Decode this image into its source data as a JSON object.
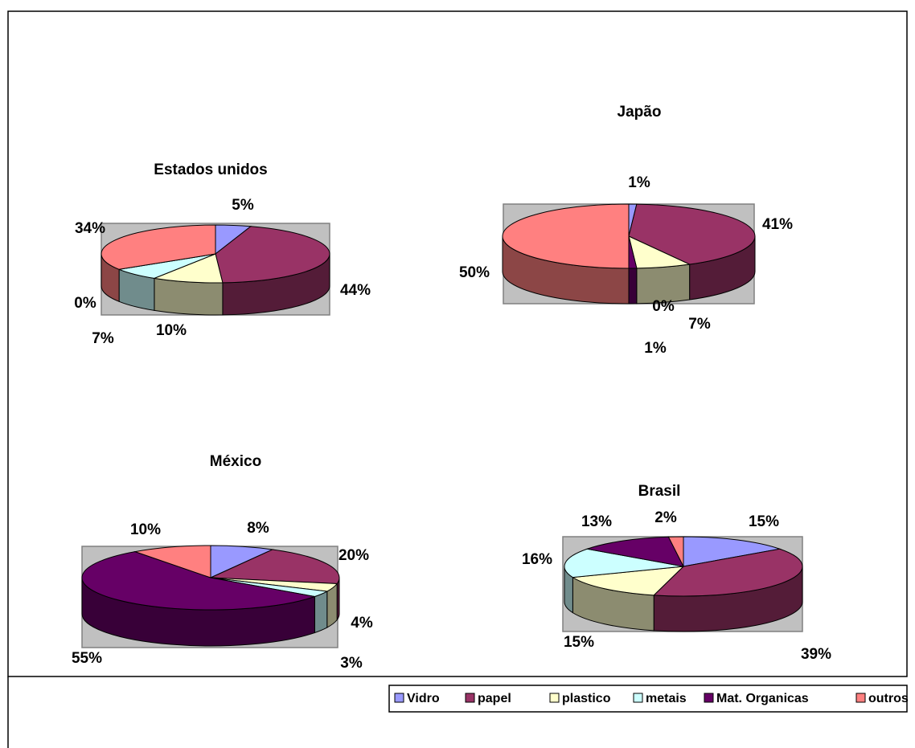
{
  "legend": {
    "categories": [
      "Vidro",
      "papel",
      "plastico",
      "metais",
      "Mat. Organicas",
      "outros"
    ],
    "colors": [
      "#9999ff",
      "#993366",
      "#ffffcc",
      "#ccffff",
      "#660066",
      "#ff8080"
    ]
  },
  "chart_data": [
    {
      "type": "pie",
      "title": "Estados unidos",
      "values": [
        5,
        44,
        10,
        7,
        0,
        34
      ],
      "value_labels": [
        "5%",
        "44%",
        "10%",
        "7%",
        "0%",
        "34%"
      ]
    },
    {
      "type": "pie",
      "title": "Japão",
      "values": [
        1,
        41,
        7,
        0,
        1,
        50
      ],
      "value_labels": [
        "1%",
        "41%",
        "7%",
        "0%",
        "1%",
        "50%"
      ]
    },
    {
      "type": "pie",
      "title": "México",
      "values": [
        8,
        20,
        4,
        3,
        55,
        10
      ],
      "value_labels": [
        "8%",
        "20%",
        "4%",
        "3%",
        "55%",
        "10%"
      ]
    },
    {
      "type": "pie",
      "title": "Brasil",
      "values": [
        15,
        39,
        15,
        16,
        13,
        2
      ],
      "value_labels": [
        "15%",
        "39%",
        "15%",
        "16%",
        "13%",
        "2%"
      ]
    }
  ]
}
